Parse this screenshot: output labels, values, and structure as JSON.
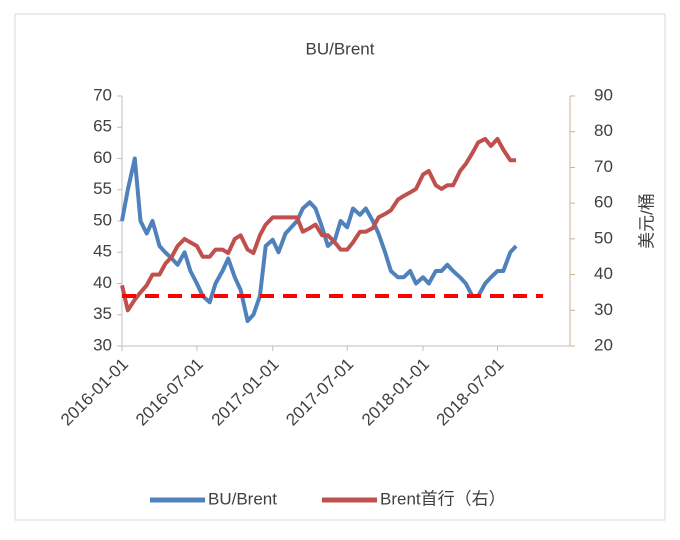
{
  "chart_data": {
    "type": "line",
    "title": "BU/Brent",
    "y2_label": "美元/桶",
    "x": [
      "2016-01-01",
      "2016-01-15",
      "2016-02-01",
      "2016-02-15",
      "2016-03-01",
      "2016-03-15",
      "2016-04-01",
      "2016-04-15",
      "2016-05-01",
      "2016-05-15",
      "2016-06-01",
      "2016-06-15",
      "2016-07-01",
      "2016-07-15",
      "2016-08-01",
      "2016-08-15",
      "2016-09-01",
      "2016-09-15",
      "2016-10-01",
      "2016-10-15",
      "2016-11-01",
      "2016-11-15",
      "2016-12-01",
      "2016-12-15",
      "2017-01-01",
      "2017-01-15",
      "2017-02-01",
      "2017-02-15",
      "2017-03-01",
      "2017-03-15",
      "2017-04-01",
      "2017-04-15",
      "2017-05-01",
      "2017-05-15",
      "2017-06-01",
      "2017-06-15",
      "2017-07-01",
      "2017-07-15",
      "2017-08-01",
      "2017-08-15",
      "2017-09-01",
      "2017-09-15",
      "2017-10-01",
      "2017-10-15",
      "2017-11-01",
      "2017-11-15",
      "2017-12-01",
      "2017-12-15",
      "2018-01-01",
      "2018-01-15",
      "2018-02-01",
      "2018-02-15",
      "2018-03-01",
      "2018-03-15",
      "2018-04-01",
      "2018-04-15",
      "2018-05-01",
      "2018-05-15",
      "2018-06-01",
      "2018-06-15",
      "2018-07-01",
      "2018-07-15",
      "2018-08-01",
      "2018-08-15"
    ],
    "series": [
      {
        "name": "BU/Brent",
        "color": "#4f81bd",
        "axis": "y",
        "values": [
          50,
          55,
          60,
          50,
          48,
          50,
          46,
          45,
          44,
          43,
          45,
          42,
          40,
          38,
          37,
          40,
          42,
          44,
          41,
          39,
          34,
          35,
          38,
          46,
          47,
          45,
          48,
          49,
          50,
          52,
          53,
          52,
          49,
          46,
          47,
          50,
          49,
          52,
          51,
          52,
          50,
          48,
          45,
          42,
          41,
          41,
          42,
          40,
          41,
          40,
          42,
          42,
          43,
          42,
          41,
          40,
          38,
          38,
          40,
          41,
          42,
          42,
          45,
          46
        ]
      },
      {
        "name": "Brent首行（右）",
        "color": "#c0504d",
        "axis": "y2",
        "values": [
          37,
          30,
          33,
          35,
          37,
          40,
          40,
          43,
          45,
          48,
          50,
          49,
          48,
          45,
          45,
          47,
          47,
          46,
          50,
          51,
          47,
          46,
          51,
          54,
          56,
          56,
          56,
          56,
          56,
          52,
          53,
          54,
          51,
          51,
          49,
          47,
          47,
          49,
          52,
          52,
          53,
          56,
          57,
          58,
          61,
          62,
          63,
          64,
          68,
          69,
          65,
          64,
          65,
          65,
          69,
          71,
          74,
          77,
          78,
          76,
          78,
          75,
          72,
          72
        ]
      }
    ],
    "reference_line": {
      "value": 38,
      "color": "#ff0000"
    },
    "xlim": [
      "2016-01-01",
      "2018-12-24"
    ],
    "xticks": [
      "2016-01-01",
      "2016-07-01",
      "2017-01-01",
      "2017-07-01",
      "2018-01-01",
      "2018-07-01"
    ],
    "ylim": [
      30,
      70
    ],
    "yticks": [
      30,
      35,
      40,
      45,
      50,
      55,
      60,
      65,
      70
    ],
    "y2lim": [
      20,
      90
    ],
    "y2ticks": [
      20,
      30,
      40,
      50,
      60,
      70,
      80,
      90
    ],
    "legend": "bottom"
  }
}
